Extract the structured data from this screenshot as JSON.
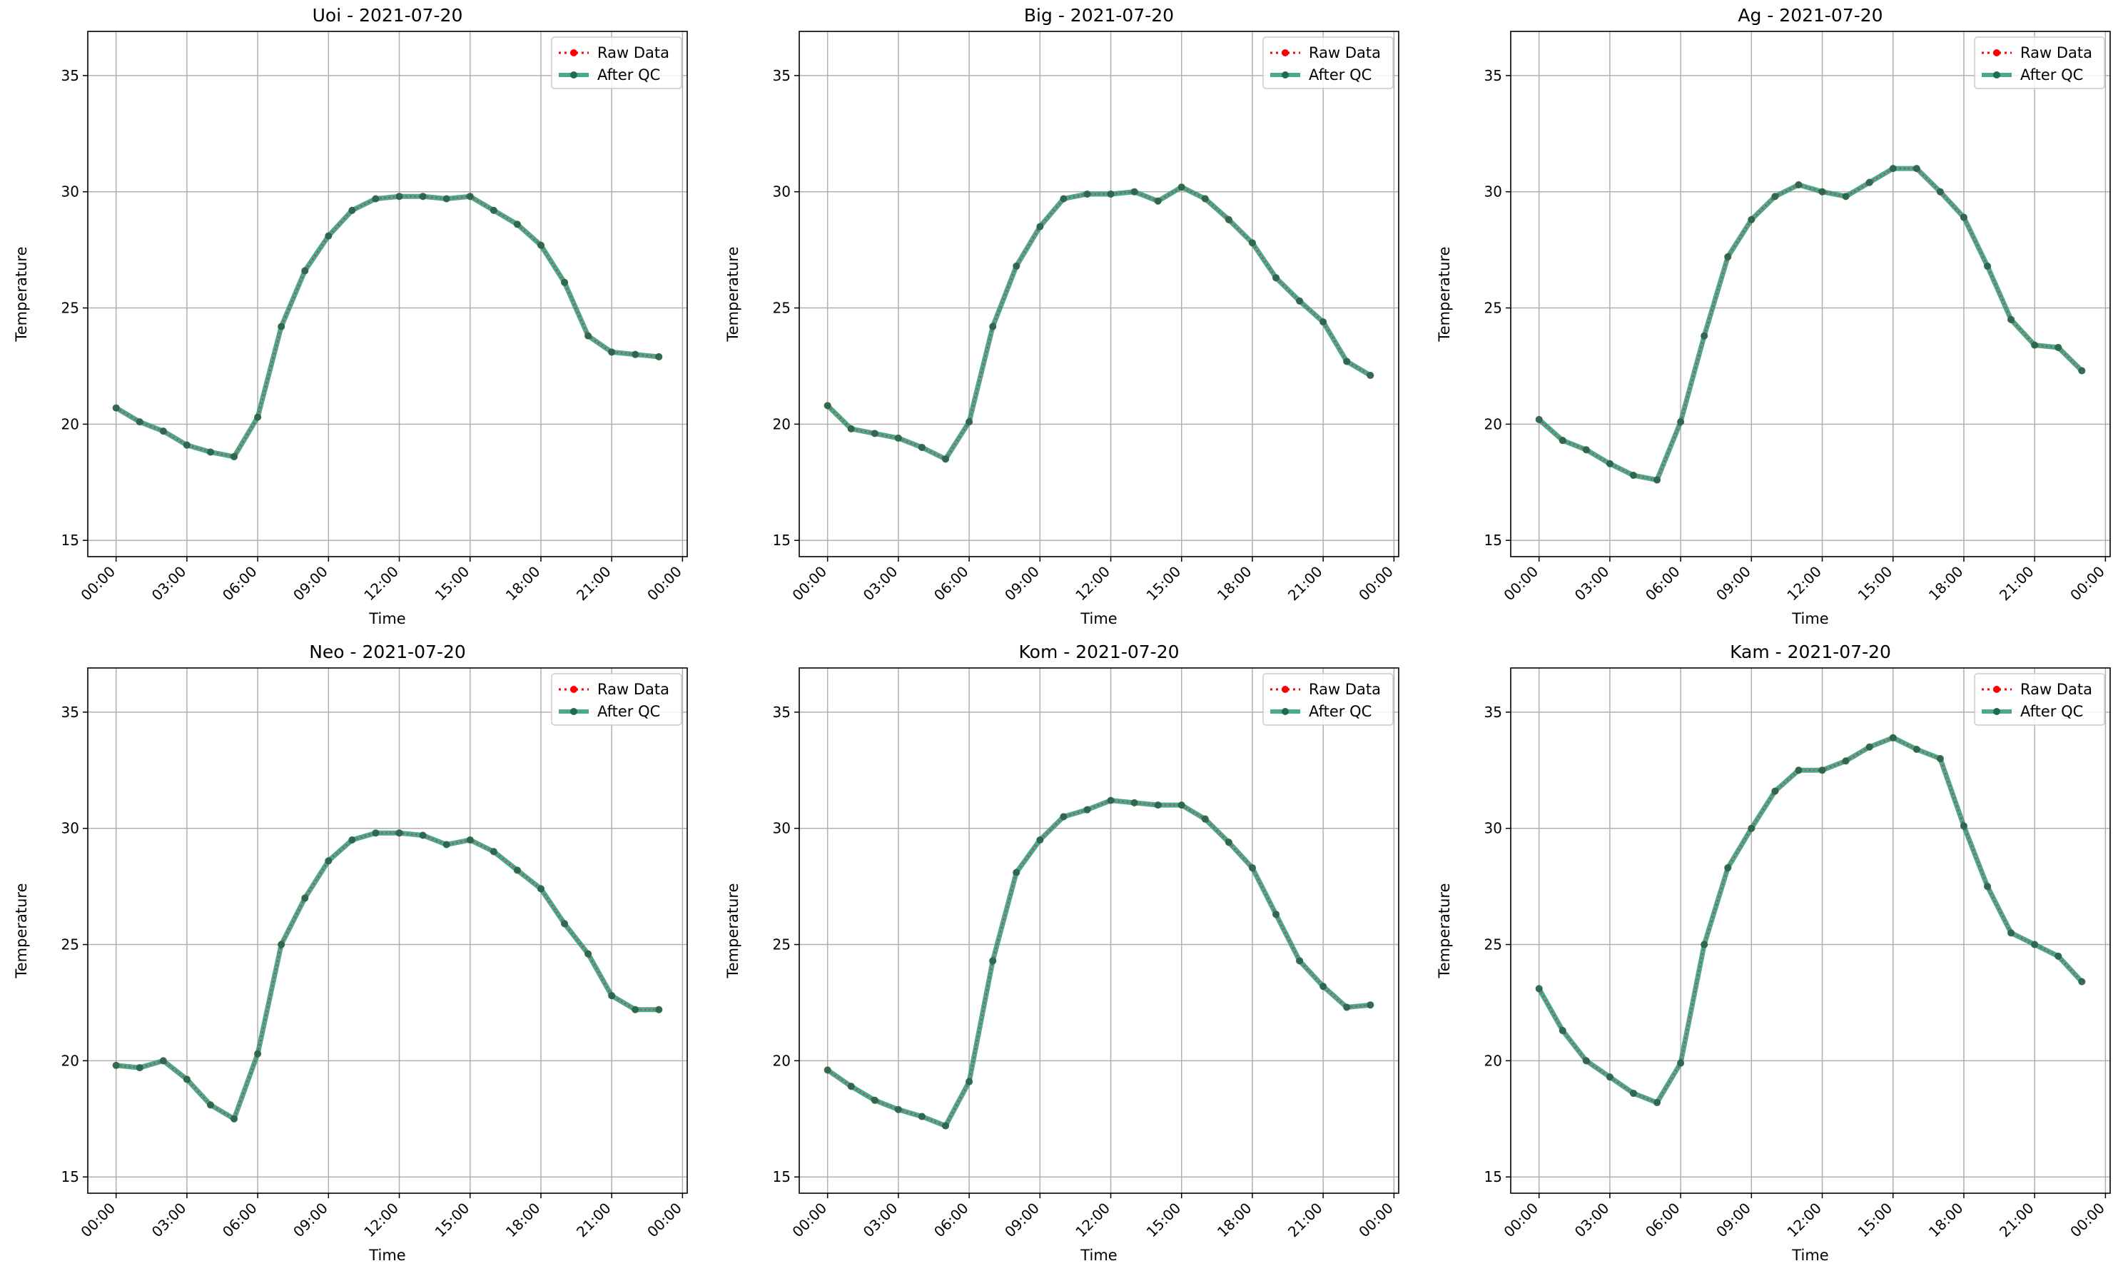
{
  "colors": {
    "raw": "#ff0000",
    "qc": "#2e9a78",
    "qc_marker": "#1f6b50",
    "grid": "#b0b0b0"
  },
  "chart_data": [
    {
      "type": "line",
      "title": "Uoi - 2021-07-20",
      "xlabel": "Time",
      "ylabel": "Temperature",
      "xticks": [
        "00:00",
        "03:00",
        "06:00",
        "09:00",
        "12:00",
        "15:00",
        "18:00",
        "21:00",
        "00:00"
      ],
      "xlim_hours": [
        -1.2,
        24.2
      ],
      "ylim": [
        14.3,
        36.9
      ],
      "yticks": [
        15,
        20,
        25,
        30,
        35
      ],
      "grid": true,
      "legend_position": "top-right",
      "x_hours": [
        0,
        1,
        2,
        3,
        4,
        5,
        6,
        7,
        8,
        9,
        10,
        11,
        12,
        13,
        14,
        15,
        16,
        17,
        18,
        19,
        20,
        21,
        22,
        23
      ],
      "series": [
        {
          "name": "Raw Data",
          "values": [
            20.7,
            20.1,
            19.7,
            19.1,
            18.8,
            18.6,
            20.3,
            24.2,
            26.6,
            28.1,
            29.2,
            29.7,
            29.8,
            29.8,
            29.7,
            29.8,
            29.2,
            28.6,
            27.7,
            26.1,
            23.8,
            23.1,
            23.0,
            22.9
          ]
        },
        {
          "name": "After QC",
          "values": [
            20.7,
            20.1,
            19.7,
            19.1,
            18.8,
            18.6,
            20.3,
            24.2,
            26.6,
            28.1,
            29.2,
            29.7,
            29.8,
            29.8,
            29.7,
            29.8,
            29.2,
            28.6,
            27.7,
            26.1,
            23.8,
            23.1,
            23.0,
            22.9
          ]
        }
      ]
    },
    {
      "type": "line",
      "title": "Big - 2021-07-20",
      "xlabel": "Time",
      "ylabel": "Temperature",
      "xticks": [
        "00:00",
        "03:00",
        "06:00",
        "09:00",
        "12:00",
        "15:00",
        "18:00",
        "21:00",
        "00:00"
      ],
      "xlim_hours": [
        -1.2,
        24.2
      ],
      "ylim": [
        14.3,
        36.9
      ],
      "yticks": [
        15,
        20,
        25,
        30,
        35
      ],
      "grid": true,
      "legend_position": "top-right",
      "x_hours": [
        0,
        1,
        2,
        3,
        4,
        5,
        6,
        7,
        8,
        9,
        10,
        11,
        12,
        13,
        14,
        15,
        16,
        17,
        18,
        19,
        20,
        21,
        22,
        23
      ],
      "series": [
        {
          "name": "Raw Data",
          "values": [
            20.8,
            19.8,
            19.6,
            19.4,
            19.0,
            18.5,
            20.1,
            24.2,
            26.8,
            28.5,
            29.7,
            29.9,
            29.9,
            30.0,
            29.6,
            30.2,
            29.7,
            28.8,
            27.8,
            26.3,
            25.3,
            24.4,
            22.7,
            22.1
          ]
        },
        {
          "name": "After QC",
          "values": [
            20.8,
            19.8,
            19.6,
            19.4,
            19.0,
            18.5,
            20.1,
            24.2,
            26.8,
            28.5,
            29.7,
            29.9,
            29.9,
            30.0,
            29.6,
            30.2,
            29.7,
            28.8,
            27.8,
            26.3,
            25.3,
            24.4,
            22.7,
            22.1
          ]
        }
      ]
    },
    {
      "type": "line",
      "title": "Ag - 2021-07-20",
      "xlabel": "Time",
      "ylabel": "Temperature",
      "xticks": [
        "00:00",
        "03:00",
        "06:00",
        "09:00",
        "12:00",
        "15:00",
        "18:00",
        "21:00",
        "00:00"
      ],
      "xlim_hours": [
        -1.2,
        24.2
      ],
      "ylim": [
        14.3,
        36.9
      ],
      "yticks": [
        15,
        20,
        25,
        30,
        35
      ],
      "grid": true,
      "legend_position": "top-right",
      "x_hours": [
        0,
        1,
        2,
        3,
        4,
        5,
        6,
        7,
        8,
        9,
        10,
        11,
        12,
        13,
        14,
        15,
        16,
        17,
        18,
        19,
        20,
        21,
        22,
        23
      ],
      "series": [
        {
          "name": "Raw Data",
          "values": [
            20.2,
            19.3,
            18.9,
            18.3,
            17.8,
            17.6,
            20.1,
            23.8,
            27.2,
            28.8,
            29.8,
            30.3,
            30.0,
            29.8,
            30.4,
            31.0,
            31.0,
            30.0,
            28.9,
            26.8,
            24.5,
            23.4,
            23.3,
            22.3
          ]
        },
        {
          "name": "After QC",
          "values": [
            20.2,
            19.3,
            18.9,
            18.3,
            17.8,
            17.6,
            20.1,
            23.8,
            27.2,
            28.8,
            29.8,
            30.3,
            30.0,
            29.8,
            30.4,
            31.0,
            31.0,
            30.0,
            28.9,
            26.8,
            24.5,
            23.4,
            23.3,
            22.3
          ]
        }
      ]
    },
    {
      "type": "line",
      "title": "Neo - 2021-07-20",
      "xlabel": "Time",
      "ylabel": "Temperature",
      "xticks": [
        "00:00",
        "03:00",
        "06:00",
        "09:00",
        "12:00",
        "15:00",
        "18:00",
        "21:00",
        "00:00"
      ],
      "xlim_hours": [
        -1.2,
        24.2
      ],
      "ylim": [
        14.3,
        36.9
      ],
      "yticks": [
        15,
        20,
        25,
        30,
        35
      ],
      "grid": true,
      "legend_position": "top-right",
      "x_hours": [
        0,
        1,
        2,
        3,
        4,
        5,
        6,
        7,
        8,
        9,
        10,
        11,
        12,
        13,
        14,
        15,
        16,
        17,
        18,
        19,
        20,
        21,
        22,
        23
      ],
      "series": [
        {
          "name": "Raw Data",
          "values": [
            19.8,
            19.7,
            20.0,
            19.2,
            18.1,
            17.5,
            20.3,
            25.0,
            27.0,
            28.6,
            29.5,
            29.8,
            29.8,
            29.7,
            29.3,
            29.5,
            29.0,
            28.2,
            27.4,
            25.9,
            24.6,
            22.8,
            22.2,
            22.2
          ]
        },
        {
          "name": "After QC",
          "values": [
            19.8,
            19.7,
            20.0,
            19.2,
            18.1,
            17.5,
            20.3,
            25.0,
            27.0,
            28.6,
            29.5,
            29.8,
            29.8,
            29.7,
            29.3,
            29.5,
            29.0,
            28.2,
            27.4,
            25.9,
            24.6,
            22.8,
            22.2,
            22.2
          ]
        }
      ]
    },
    {
      "type": "line",
      "title": "Kom - 2021-07-20",
      "xlabel": "Time",
      "ylabel": "Temperature",
      "xticks": [
        "00:00",
        "03:00",
        "06:00",
        "09:00",
        "12:00",
        "15:00",
        "18:00",
        "21:00",
        "00:00"
      ],
      "xlim_hours": [
        -1.2,
        24.2
      ],
      "ylim": [
        14.3,
        36.9
      ],
      "yticks": [
        15,
        20,
        25,
        30,
        35
      ],
      "grid": true,
      "legend_position": "top-right",
      "x_hours": [
        0,
        1,
        2,
        3,
        4,
        5,
        6,
        7,
        8,
        9,
        10,
        11,
        12,
        13,
        14,
        15,
        16,
        17,
        18,
        19,
        20,
        21,
        22,
        23
      ],
      "series": [
        {
          "name": "Raw Data",
          "values": [
            19.6,
            18.9,
            18.3,
            17.9,
            17.6,
            17.2,
            19.1,
            24.3,
            28.1,
            29.5,
            30.5,
            30.8,
            31.2,
            31.1,
            31.0,
            31.0,
            30.4,
            29.4,
            28.3,
            26.3,
            24.3,
            23.2,
            22.3,
            22.4
          ]
        },
        {
          "name": "After QC",
          "values": [
            19.6,
            18.9,
            18.3,
            17.9,
            17.6,
            17.2,
            19.1,
            24.3,
            28.1,
            29.5,
            30.5,
            30.8,
            31.2,
            31.1,
            31.0,
            31.0,
            30.4,
            29.4,
            28.3,
            26.3,
            24.3,
            23.2,
            22.3,
            22.4
          ]
        }
      ]
    },
    {
      "type": "line",
      "title": "Kam - 2021-07-20",
      "xlabel": "Time",
      "ylabel": "Temperature",
      "xticks": [
        "00:00",
        "03:00",
        "06:00",
        "09:00",
        "12:00",
        "15:00",
        "18:00",
        "21:00",
        "00:00"
      ],
      "xlim_hours": [
        -1.2,
        24.2
      ],
      "ylim": [
        14.3,
        36.9
      ],
      "yticks": [
        15,
        20,
        25,
        30,
        35
      ],
      "grid": true,
      "legend_position": "top-right",
      "x_hours": [
        0,
        1,
        2,
        3,
        4,
        5,
        6,
        7,
        8,
        9,
        10,
        11,
        12,
        13,
        14,
        15,
        16,
        17,
        18,
        19,
        20,
        21,
        22,
        23
      ],
      "series": [
        {
          "name": "Raw Data",
          "values": [
            23.1,
            21.3,
            20.0,
            19.3,
            18.6,
            18.2,
            19.9,
            25.0,
            28.3,
            30.0,
            31.6,
            32.5,
            32.5,
            32.9,
            33.5,
            33.9,
            33.4,
            33.0,
            30.1,
            27.5,
            25.5,
            25.0,
            24.5,
            23.4
          ]
        },
        {
          "name": "After QC",
          "values": [
            23.1,
            21.3,
            20.0,
            19.3,
            18.6,
            18.2,
            19.9,
            25.0,
            28.3,
            30.0,
            31.6,
            32.5,
            32.5,
            32.9,
            33.5,
            33.9,
            33.4,
            33.0,
            30.1,
            27.5,
            25.5,
            25.0,
            24.5,
            23.4
          ]
        }
      ]
    }
  ]
}
